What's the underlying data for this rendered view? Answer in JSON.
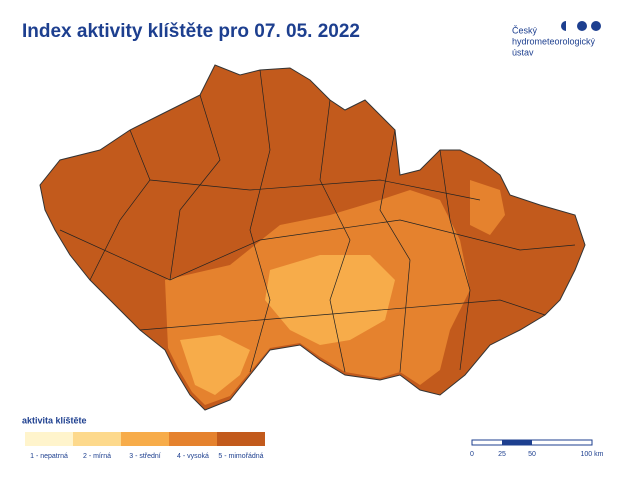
{
  "header": {
    "title": "Index aktivity klíštěte pro 07. 05. 2022"
  },
  "logo": {
    "lines": [
      "Český",
      "hydrometeorologický",
      "ústav"
    ]
  },
  "legend": {
    "title": "aktivita klíštěte",
    "items": [
      {
        "label": "1 - nepatrná",
        "color": "#fff4cc"
      },
      {
        "label": "2 - mírná",
        "color": "#fdd98c"
      },
      {
        "label": "3 - střední",
        "color": "#f7ac4a"
      },
      {
        "label": "4 - vysoká",
        "color": "#e5822e"
      },
      {
        "label": "5 - mimořádná",
        "color": "#c25a1c"
      }
    ]
  },
  "scale_bar": {
    "labels": [
      "0",
      "25",
      "50",
      "100 km"
    ]
  }
}
